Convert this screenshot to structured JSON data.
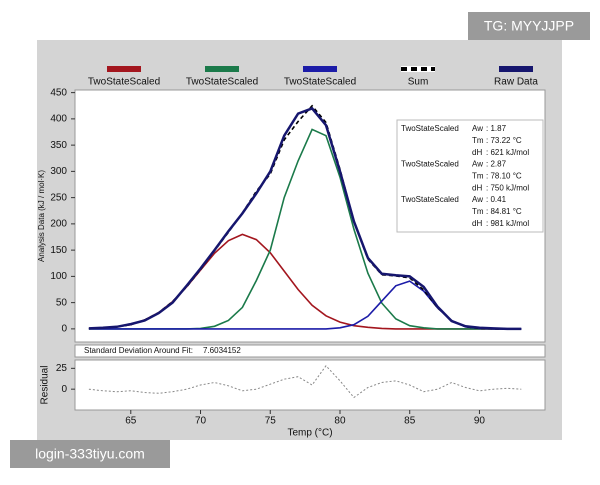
{
  "watermarks": [
    "TG: MYYJJPP",
    "login-333tiyu.com"
  ],
  "chart_data": [
    {
      "type": "line",
      "ylabel": "Analysis Data (kJ / mol·K)",
      "legend": "top",
      "x": [
        62,
        63,
        64,
        65,
        66,
        67,
        68,
        69,
        70,
        71,
        72,
        73,
        74,
        75,
        76,
        77,
        78,
        79,
        80,
        81,
        82,
        83,
        84,
        85,
        86,
        87,
        88,
        89,
        90,
        91,
        92,
        93
      ],
      "xlim": [
        61,
        94.7
      ],
      "ylim": [
        -25,
        455
      ],
      "yticks": [
        0,
        50,
        100,
        150,
        200,
        250,
        300,
        350,
        400,
        450
      ],
      "series": [
        {
          "name": "TwoStateScaled",
          "color": "#a3161e",
          "values": [
            1,
            2,
            4,
            8,
            17,
            31,
            52,
            80,
            112,
            144,
            168,
            180,
            170,
            145,
            110,
            75,
            45,
            25,
            13,
            6,
            3,
            1,
            0,
            0,
            0,
            0,
            0,
            0,
            0,
            0,
            0,
            0
          ]
        },
        {
          "name": "TwoStateScaled",
          "color": "#1b7a4a",
          "values": [
            0,
            0,
            0,
            0,
            0,
            0,
            0,
            0,
            1,
            5,
            16,
            41,
            92,
            150,
            250,
            320,
            380,
            368,
            289,
            190,
            106,
            49,
            19,
            6,
            2,
            0,
            0,
            0,
            0,
            0,
            0,
            0
          ]
        },
        {
          "name": "TwoStateScaled",
          "color": "#1c1ca8",
          "values": [
            0,
            0,
            0,
            0,
            0,
            0,
            0,
            0,
            0,
            0,
            0,
            0,
            0,
            0,
            0,
            0,
            0,
            0,
            2,
            8,
            24,
            53,
            82,
            91,
            72,
            40,
            16,
            4,
            1,
            0,
            0,
            0
          ]
        },
        {
          "name": "Sum",
          "color": "#000000",
          "dashed": true,
          "values": [
            1,
            2,
            4,
            8,
            17,
            31,
            52,
            80,
            113,
            149,
            184,
            221,
            262,
            295,
            360,
            395,
            425,
            393,
            304,
            204,
            133,
            103,
            101,
            97,
            74,
            40,
            16,
            4,
            1,
            0,
            0,
            0
          ]
        },
        {
          "name": "Raw Data",
          "color": "#16166e",
          "values": [
            1,
            2,
            4,
            9,
            16,
            30,
            50,
            82,
            115,
            150,
            186,
            220,
            258,
            300,
            368,
            410,
            420,
            388,
            300,
            205,
            135,
            105,
            102,
            100,
            80,
            42,
            15,
            5,
            2,
            1,
            0,
            0
          ]
        }
      ],
      "fit_table": [
        {
          "name": "TwoStateScaled",
          "rows": [
            {
              "label": "Aw",
              "value": ": 1.87"
            },
            {
              "label": "Tm",
              "value": ": 73.22 °C"
            },
            {
              "label": "dH",
              "value": ": 621 kJ/mol"
            }
          ]
        },
        {
          "name": "TwoStateScaled",
          "rows": [
            {
              "label": "Aw",
              "value": ": 2.87"
            },
            {
              "label": "Tm",
              "value": ": 78.10 °C"
            },
            {
              "label": "dH",
              "value": ": 750 kJ/mol"
            }
          ]
        },
        {
          "name": "TwoStateScaled",
          "rows": [
            {
              "label": "Aw",
              "value": ": 0.41"
            },
            {
              "label": "Tm",
              "value": ": 84.81 °C"
            },
            {
              "label": "dH",
              "value": ": 981 kJ/mol"
            }
          ]
        }
      ],
      "std_dev": {
        "label": "Standard Deviation Around Fit:",
        "value": "7.6034152"
      }
    },
    {
      "type": "line",
      "xlabel": "Temp (°C)",
      "ylabel": "Residual",
      "color": "#888888",
      "x": [
        62,
        63,
        64,
        65,
        66,
        67,
        68,
        69,
        70,
        71,
        72,
        73,
        74,
        75,
        76,
        77,
        78,
        79,
        80,
        81,
        82,
        83,
        84,
        85,
        86,
        87,
        88,
        89,
        90,
        91,
        92,
        93
      ],
      "values": [
        0,
        -2,
        -3,
        -2,
        -4,
        -5,
        -3,
        0,
        5,
        8,
        4,
        -2,
        0,
        6,
        12,
        15,
        5,
        28,
        10,
        -10,
        2,
        8,
        10,
        5,
        -3,
        0,
        8,
        2,
        -2,
        0,
        1,
        0
      ],
      "xlim": [
        61,
        94.7
      ],
      "xticks": [
        65,
        70,
        75,
        80,
        85,
        90
      ],
      "ylim": [
        -25,
        35
      ],
      "yticks": [
        0,
        25
      ]
    }
  ]
}
